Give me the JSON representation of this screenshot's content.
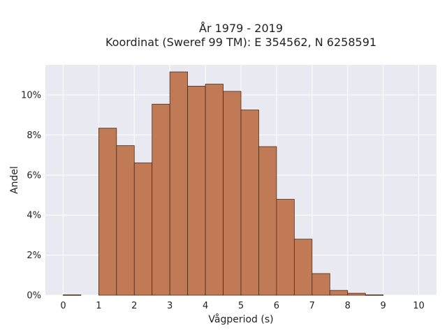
{
  "chart_data": {
    "type": "bar",
    "title_lines": [
      "År 1979 - 2019",
      "Koordinat (Sweref 99 TM): E 354562, N 6258591"
    ],
    "xlabel": "Vågperiod (s)",
    "ylabel": "Andel",
    "xlim": [
      -0.5,
      10.5
    ],
    "ylim": [
      0,
      0.115
    ],
    "xticks": [
      0,
      1,
      2,
      3,
      4,
      5,
      6,
      7,
      8,
      9,
      10
    ],
    "yticks": [
      0,
      0.02,
      0.04,
      0.06,
      0.08,
      0.1
    ],
    "ytick_labels": [
      "0%",
      "2%",
      "4%",
      "6%",
      "8%",
      "10%"
    ],
    "bin_width": 0.5,
    "bins": [
      {
        "x0": 0.0,
        "value": 0.0002
      },
      {
        "x0": 0.5,
        "value": 0.0
      },
      {
        "x0": 1.0,
        "value": 0.0834
      },
      {
        "x0": 1.5,
        "value": 0.0747
      },
      {
        "x0": 2.0,
        "value": 0.0661
      },
      {
        "x0": 2.5,
        "value": 0.0954
      },
      {
        "x0": 3.0,
        "value": 0.1115
      },
      {
        "x0": 3.5,
        "value": 0.1044
      },
      {
        "x0": 4.0,
        "value": 0.1054
      },
      {
        "x0": 4.5,
        "value": 0.1018
      },
      {
        "x0": 5.0,
        "value": 0.0925
      },
      {
        "x0": 5.5,
        "value": 0.0742
      },
      {
        "x0": 6.0,
        "value": 0.0479
      },
      {
        "x0": 6.5,
        "value": 0.028
      },
      {
        "x0": 7.0,
        "value": 0.0108
      },
      {
        "x0": 7.5,
        "value": 0.0024
      },
      {
        "x0": 8.0,
        "value": 0.001
      },
      {
        "x0": 8.5,
        "value": 0.0002
      },
      {
        "x0": 9.0,
        "value": 0.0
      },
      {
        "x0": 9.5,
        "value": 0.0
      }
    ],
    "grid": true,
    "colors": {
      "bar_fill": "#c07a55",
      "bar_edge": "#4a2a18",
      "plot_bg": "#e9e9f1",
      "grid": "#ffffff"
    }
  }
}
